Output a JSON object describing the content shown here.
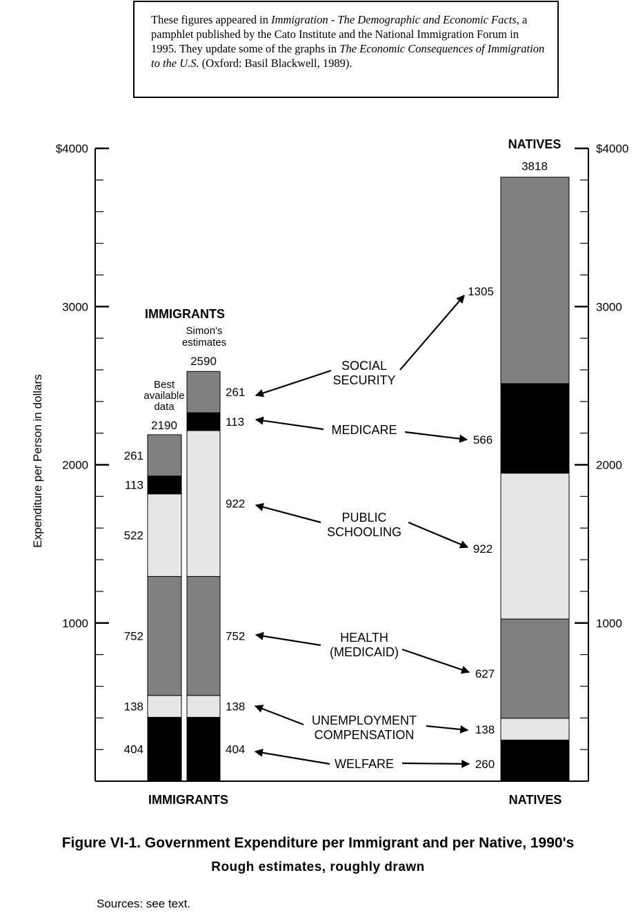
{
  "note": {
    "p1": "These figures appeared in ",
    "i1": "Immigration - The Demographic and Economic Facts",
    "p2": ", a pamphlet published by the Cato Institute and the National Immigration Forum in 1995. They update some of the graphs in ",
    "i2": "The Economic Consequences of Immigration to the U.S.",
    "p3": " (Oxford: Basil Blackwell, 1989)."
  },
  "chart_data": {
    "type": "bar",
    "stacked": true,
    "ylabel": "Expenditure per Person in dollars",
    "ylim": [
      0,
      4000
    ],
    "yticks": [
      "$4000",
      "3000",
      "2000",
      "1000"
    ],
    "categories": [
      "Best available data",
      "Simon's estimates",
      "NATIVES"
    ],
    "group_labels": {
      "immigrants": "IMMIGRANTS",
      "natives": "NATIVES"
    },
    "header_labels": {
      "immigrants": "IMMIGRANTS",
      "natives": "NATIVES"
    },
    "bar_captions": [
      "Best\navailable\ndata",
      "Simon's\nestimates"
    ],
    "totals": [
      "2190",
      "2590",
      "3818"
    ],
    "series": [
      {
        "name": "WELFARE",
        "values": [
          404,
          404,
          260
        ],
        "color": "#000000"
      },
      {
        "name": "UNEMPLOYMENT\nCOMPENSATION",
        "values": [
          138,
          138,
          138
        ],
        "color": "#e6e6e6"
      },
      {
        "name": "HEALTH\n(MEDICAID)",
        "values": [
          752,
          752,
          627
        ],
        "color": "#808080"
      },
      {
        "name": "PUBLIC\nSCHOOLING",
        "values": [
          522,
          922,
          922
        ],
        "color": "#e6e6e6"
      },
      {
        "name": "MEDICARE",
        "values": [
          113,
          113,
          566
        ],
        "color": "#000000"
      },
      {
        "name": "SOCIAL\nSECURITY",
        "values": [
          261,
          261,
          1305
        ],
        "color": "#808080"
      }
    ]
  },
  "figure_title": "Figure VI-1. Government Expenditure per Immigrant and per Native, 1990's",
  "figure_subtitle": "Rough estimates, roughly drawn",
  "sources": "Sources: see text."
}
